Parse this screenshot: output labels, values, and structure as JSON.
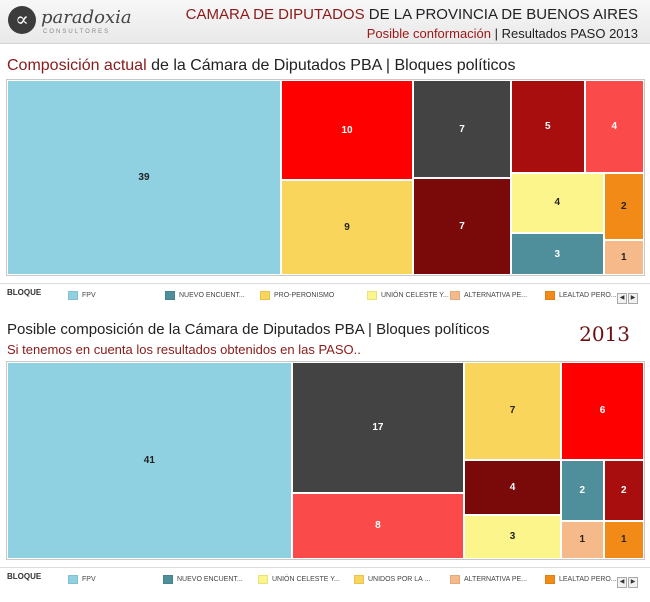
{
  "header": {
    "logo_glyph": "∝",
    "logo_name": "paradoxia",
    "logo_sub": "CONSULTORES",
    "title_highlight": "CAMARA DE DIPUTADOS",
    "title_rest": " DE LA PROVINCIA DE BUENOS AIRES",
    "subtitle_highlight": "Posible conformación",
    "subtitle_sep": "|",
    "subtitle_rest": " Resultados PASO 2013"
  },
  "chart_data": [
    {
      "type": "treemap",
      "title_highlight": "Composición actual",
      "title_rest": " de la Cámara de Diputados PBA | Bloques políticos",
      "legend_label": "BLOQUE",
      "legend_visible": [
        {
          "name": "FPV",
          "color": "#8fd0e1"
        },
        {
          "name": "NUEVO ENCUENT...",
          "color": "#4e8f9b"
        },
        {
          "name": "PRO-PERONISMO",
          "color": "#f9d55b"
        },
        {
          "name": "UNIÓN CELESTE Y...",
          "color": "#fbf58c"
        },
        {
          "name": "ALTERNATIVA PE...",
          "color": "#f5b98a"
        },
        {
          "name": "LEALTAD PERO...",
          "color": "#f28a18"
        }
      ],
      "values": [
        39,
        10,
        9,
        7,
        7,
        5,
        4,
        4,
        3,
        2,
        1
      ]
    },
    {
      "type": "treemap",
      "title": "Posible composición de la Cámara de Diputados PBA | Bloques políticos",
      "subtitle": "Si tenemos en cuenta los resultados obtenidos en las PASO..",
      "year": "2013",
      "legend_label": "BLOQUE",
      "legend_visible": [
        {
          "name": "FPV",
          "color": "#8fd0e1"
        },
        {
          "name": "NUEVO ENCUENT...",
          "color": "#4e8f9b"
        },
        {
          "name": "UNIÓN CELESTE Y...",
          "color": "#fbf58c"
        },
        {
          "name": "UNIDOS POR LA ...",
          "color": "#f9d55b"
        },
        {
          "name": "ALTERNATIVA PE...",
          "color": "#f5b98a"
        },
        {
          "name": "LEALTAD PERO...",
          "color": "#f28a18"
        }
      ],
      "values": [
        41,
        17,
        8,
        7,
        6,
        4,
        3,
        2,
        2,
        1,
        1
      ]
    }
  ],
  "nav": {
    "prev": "◀",
    "next": "▶"
  }
}
